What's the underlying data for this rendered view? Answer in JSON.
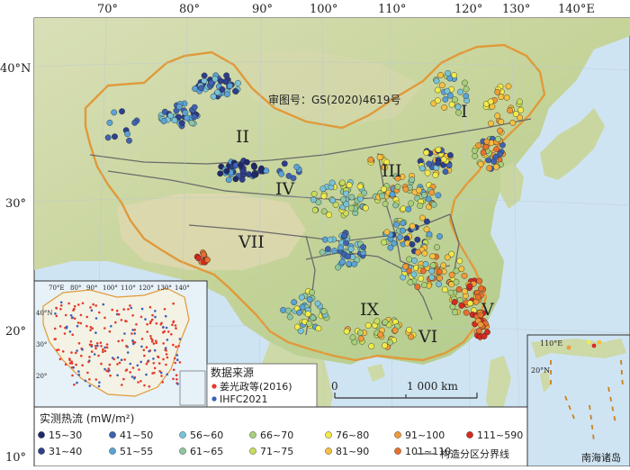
{
  "review_number": "审图号：GS(2020)4619号",
  "lon_labels": [
    "70°",
    "80°",
    "90°",
    "100°",
    "110°",
    "120°",
    "130°",
    "140°E"
  ],
  "lat_labels": [
    "40°N",
    "30°",
    "20°",
    "10°"
  ],
  "regions": [
    "I",
    "II",
    "III",
    "IV",
    "V",
    "VI",
    "VII",
    "IX"
  ],
  "scale_bar": {
    "start": "0",
    "end": "1 000 km"
  },
  "inset_lon_labels": [
    "70°E",
    "80°",
    "90°",
    "100°",
    "110°",
    "120°",
    "130°",
    "140°"
  ],
  "inset_lat_labels": [
    "40°N",
    "30°",
    "20°"
  ],
  "data_source": {
    "title": "数据来源",
    "items": [
      {
        "label": "姜光政等(2016)",
        "color": "#e53a2a"
      },
      {
        "label": "IHFC2021",
        "color": "#3b5fb8"
      }
    ]
  },
  "south_china_sea": {
    "title": "南海诸岛",
    "lon_label": "110°E",
    "lat_label": "20°N"
  },
  "legend": {
    "title": "实测热流 (mW/m²)",
    "boundary_label": "构造分区分界线",
    "classes": [
      {
        "label": "15~30",
        "color": "#1f2a6b"
      },
      {
        "label": "31~40",
        "color": "#2e3f8c"
      },
      {
        "label": "41~50",
        "color": "#3f63b0"
      },
      {
        "label": "51~55",
        "color": "#5aa3d6"
      },
      {
        "label": "56~60",
        "color": "#79c3d8"
      },
      {
        "label": "61~65",
        "color": "#8dc7a0"
      },
      {
        "label": "66~70",
        "color": "#a8d07a"
      },
      {
        "label": "71~75",
        "color": "#c8dd5c"
      },
      {
        "label": "76~80",
        "color": "#f2ea4a"
      },
      {
        "label": "81~90",
        "color": "#f6c142"
      },
      {
        "label": "91~100",
        "color": "#f19a38"
      },
      {
        "label": "101~110",
        "color": "#e8702d"
      },
      {
        "label": "111~590",
        "color": "#d62a20"
      }
    ]
  }
}
